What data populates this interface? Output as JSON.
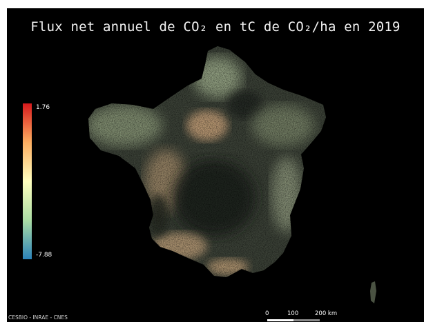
{
  "title": "Flux net annuel de CO₂ en tC de CO₂/ha en 2019",
  "legend": {
    "max_label": "1.76",
    "min_label": "-7.88",
    "max_value": 1.76,
    "min_value": -7.88,
    "colors": [
      "#d7191c",
      "#fdae61",
      "#ffffbf",
      "#abdda4",
      "#2b83ba"
    ]
  },
  "credits": "CESBIO - INRAE - CNES",
  "scalebar": {
    "labels": [
      "0",
      "100",
      "200 km"
    ]
  },
  "colors": {
    "background": "#000000",
    "land_dark": "#3a4036",
    "land_mid": "#6f7a62",
    "land_light": "#9fae8c",
    "emission": "#c8a27a"
  }
}
